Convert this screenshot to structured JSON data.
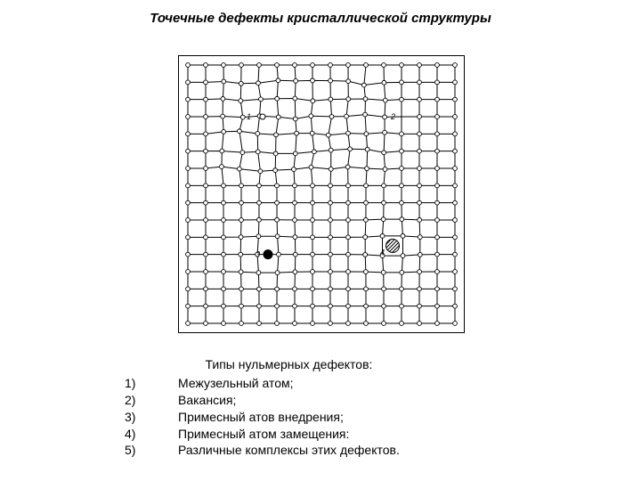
{
  "title": "Точечные дефекты кристаллической структуры",
  "caption": "Типы нульмерных дефектов:",
  "items": [
    {
      "num": "1)",
      "text": "Межузельный атом;"
    },
    {
      "num": "2)",
      "text": "Вакансия;"
    },
    {
      "num": "3)",
      "text": "Примесный атов внедрения;"
    },
    {
      "num": "4)",
      "text": "Примесный атом замещения:"
    },
    {
      "num": "5)",
      "text": "Различные комплексы этих дефектов."
    }
  ],
  "figure": {
    "type": "network",
    "grid_cols": 16,
    "grid_rows": 16,
    "atom_radius": 2.4,
    "atom_fill": "#ffffff",
    "atom_stroke": "#000000",
    "line_stroke": "#000000",
    "line_width": 1,
    "background": "#ffffff",
    "distort_region": {
      "col_min": 2,
      "col_max": 11,
      "row_min": 1,
      "row_max": 6
    },
    "defects": [
      {
        "label": "1",
        "label_col": 3.3,
        "label_row": 3.0,
        "marker": "interstitial",
        "col": 4.2,
        "row": 3.0,
        "r": 3.0,
        "fill": "#ffffff",
        "stroke": "#000000"
      },
      {
        "label": "2",
        "label_col": 11.4,
        "label_row": 3.0,
        "marker": "vacancy",
        "col": 12,
        "row": 3
      },
      {
        "label": "3",
        "label_col": 3.8,
        "label_row": 11.0,
        "marker": "impurity_interstitial",
        "col": 4.5,
        "row": 11.0,
        "r": 5.5,
        "fill": "#000000"
      },
      {
        "label": "4",
        "label_col": 10.8,
        "label_row": 10.9,
        "marker": "impurity_substitutional",
        "col": 11.5,
        "row": 10.5,
        "r": 7.5,
        "fill_pattern": "hatch",
        "stroke": "#000000"
      }
    ],
    "label_fontsize": 9,
    "label_color": "#000000",
    "displace": [
      {
        "center_col": 4.5,
        "center_row": 11.0,
        "radius_cells": 2.2,
        "strength": 2.5
      },
      {
        "center_col": 11.5,
        "center_row": 10.5,
        "radius_cells": 2.2,
        "strength": 3.0
      }
    ]
  }
}
